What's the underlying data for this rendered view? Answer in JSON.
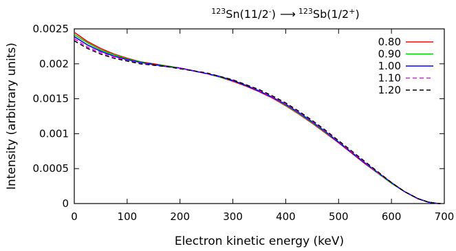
{
  "chart_data": {
    "type": "line",
    "title_parts": {
      "parent_mass": "123",
      "parent_symbol": "Sn(11/2",
      "parent_parity": "-",
      "parent_close": ")",
      "arrow": "⟶",
      "daughter_mass": "123",
      "daughter_symbol": "Sb(1/2",
      "daughter_parity": "+",
      "daughter_close": ")"
    },
    "xlabel": "Electron kinetic energy (keV)",
    "ylabel": "Intensity (arbitrary units)",
    "xlim": [
      0,
      700
    ],
    "ylim": [
      0,
      0.0025
    ],
    "xticks": [
      "0",
      "100",
      "200",
      "300",
      "400",
      "500",
      "600",
      "700"
    ],
    "xtick_values": [
      0,
      100,
      200,
      300,
      400,
      500,
      600,
      700
    ],
    "yticks": [
      "0",
      "0.0005",
      "0.001",
      "0.0015",
      "0.002",
      "0.0025"
    ],
    "ytick_values": [
      0,
      0.0005,
      0.001,
      0.0015,
      0.002,
      0.0025
    ],
    "grid": false,
    "legend_position": "top-right",
    "x": [
      0,
      25,
      50,
      75,
      100,
      125,
      150,
      175,
      200,
      225,
      250,
      275,
      300,
      325,
      350,
      375,
      400,
      425,
      450,
      475,
      500,
      525,
      550,
      575,
      600,
      625,
      650,
      670,
      685,
      693
    ],
    "series": [
      {
        "name": "0.80",
        "color": "#ff0000",
        "dash": "solid",
        "values": [
          0.00245,
          0.00232,
          0.00222,
          0.00214,
          0.00208,
          0.00203,
          0.002,
          0.00197,
          0.00194,
          0.0019,
          0.00186,
          0.00181,
          0.00175,
          0.00168,
          0.0016,
          0.00151,
          0.0014,
          0.00128,
          0.00115,
          0.00101,
          0.00087,
          0.00072,
          0.00057,
          0.00043,
          0.00029,
          0.00017,
          7e-05,
          2e-05,
          3e-06,
          0
        ]
      },
      {
        "name": "0.90",
        "color": "#00cc00",
        "dash": "solid",
        "values": [
          0.00242,
          0.0023,
          0.0022,
          0.00213,
          0.00207,
          0.00203,
          0.00199,
          0.00197,
          0.00194,
          0.0019,
          0.00186,
          0.00181,
          0.00176,
          0.00169,
          0.00161,
          0.00152,
          0.00141,
          0.00129,
          0.00116,
          0.00102,
          0.00088,
          0.00073,
          0.00058,
          0.00043,
          0.00029,
          0.00017,
          7e-05,
          2e-05,
          3e-06,
          0
        ]
      },
      {
        "name": "1.00",
        "color": "#0000ff",
        "dash": "solid",
        "values": [
          0.00239,
          0.00227,
          0.00218,
          0.00211,
          0.00206,
          0.00202,
          0.00199,
          0.00196,
          0.00194,
          0.0019,
          0.00186,
          0.00182,
          0.00176,
          0.00169,
          0.00161,
          0.00152,
          0.00142,
          0.0013,
          0.00117,
          0.00103,
          0.00088,
          0.00073,
          0.00058,
          0.00044,
          0.0003,
          0.00017,
          7e-05,
          2e-05,
          3e-06,
          0
        ]
      },
      {
        "name": "1.10",
        "color": "#ff00ff",
        "dash": "dashed",
        "values": [
          0.00236,
          0.00224,
          0.00216,
          0.0021,
          0.00205,
          0.00201,
          0.00198,
          0.00196,
          0.00194,
          0.0019,
          0.00186,
          0.00182,
          0.00177,
          0.0017,
          0.00162,
          0.00153,
          0.00143,
          0.00131,
          0.00118,
          0.00104,
          0.00089,
          0.00074,
          0.00059,
          0.00044,
          0.0003,
          0.00017,
          7e-05,
          2e-05,
          3e-06,
          0
        ]
      },
      {
        "name": "1.20",
        "color": "#000000",
        "dash": "dashed",
        "values": [
          0.00233,
          0.00222,
          0.00214,
          0.00208,
          0.00204,
          0.002,
          0.00198,
          0.00196,
          0.00193,
          0.0019,
          0.00187,
          0.00182,
          0.00177,
          0.0017,
          0.00163,
          0.00154,
          0.00144,
          0.00132,
          0.00119,
          0.00105,
          0.0009,
          0.00075,
          0.0006,
          0.00045,
          0.0003,
          0.00017,
          7e-05,
          2e-05,
          3e-06,
          0
        ]
      }
    ]
  }
}
